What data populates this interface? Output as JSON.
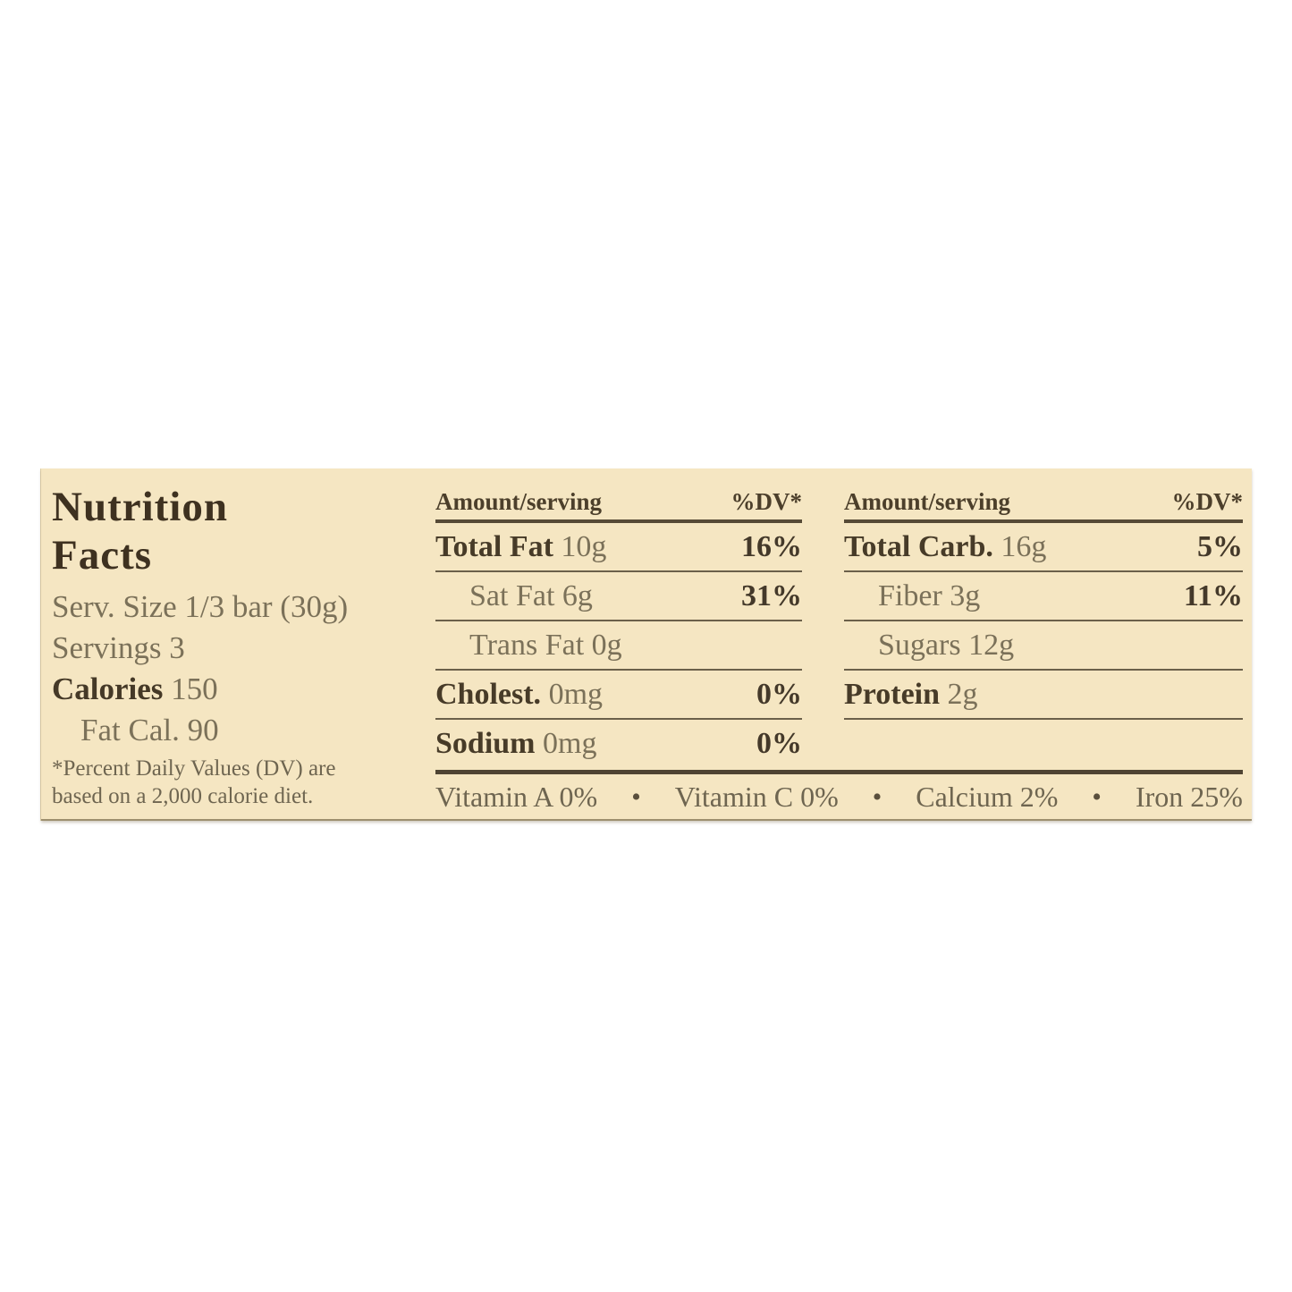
{
  "label": {
    "title_line1": "Nutrition",
    "title_line2": "Facts",
    "serving_size": "Serv. Size 1/3 bar (30g)",
    "servings": "Servings 3",
    "calories_label": "Calories",
    "calories_value": "150",
    "fat_cal": "Fat Cal. 90",
    "footnote_line1": "*Percent Daily Values (DV) are",
    "footnote_line2": "based on a 2,000 calorie diet.",
    "column_header": {
      "amount": "Amount/serving",
      "dv": "%DV*"
    },
    "columns": [
      {
        "rows": [
          {
            "name": "Total Fat",
            "amount": "10g",
            "dv": "16%"
          },
          {
            "name": "Sat Fat",
            "amount": "6g",
            "dv": "31%"
          },
          {
            "name": "Trans Fat",
            "amount": "0g",
            "dv": ""
          },
          {
            "name": "Cholest.",
            "amount": "0mg",
            "dv": "0%"
          },
          {
            "name": "Sodium",
            "amount": "0mg",
            "dv": "0%"
          }
        ]
      },
      {
        "rows": [
          {
            "name": "Total Carb.",
            "amount": "16g",
            "dv": "5%"
          },
          {
            "name": "Fiber",
            "amount": "3g",
            "dv": "11%"
          },
          {
            "name": "Sugars",
            "amount": "12g",
            "dv": ""
          },
          {
            "name": "Protein",
            "amount": "2g",
            "dv": ""
          }
        ]
      }
    ],
    "micronutrients": [
      "Vitamin A 0%",
      "Vitamin C 0%",
      "Calcium 2%",
      "Iron 25%"
    ],
    "separator": "•",
    "colors": {
      "panel_bg": "#f5e6c2",
      "title": "#3e3120",
      "bold_text": "#473b28",
      "regular_text": "#7b7159",
      "rule": "#6b604a"
    }
  }
}
